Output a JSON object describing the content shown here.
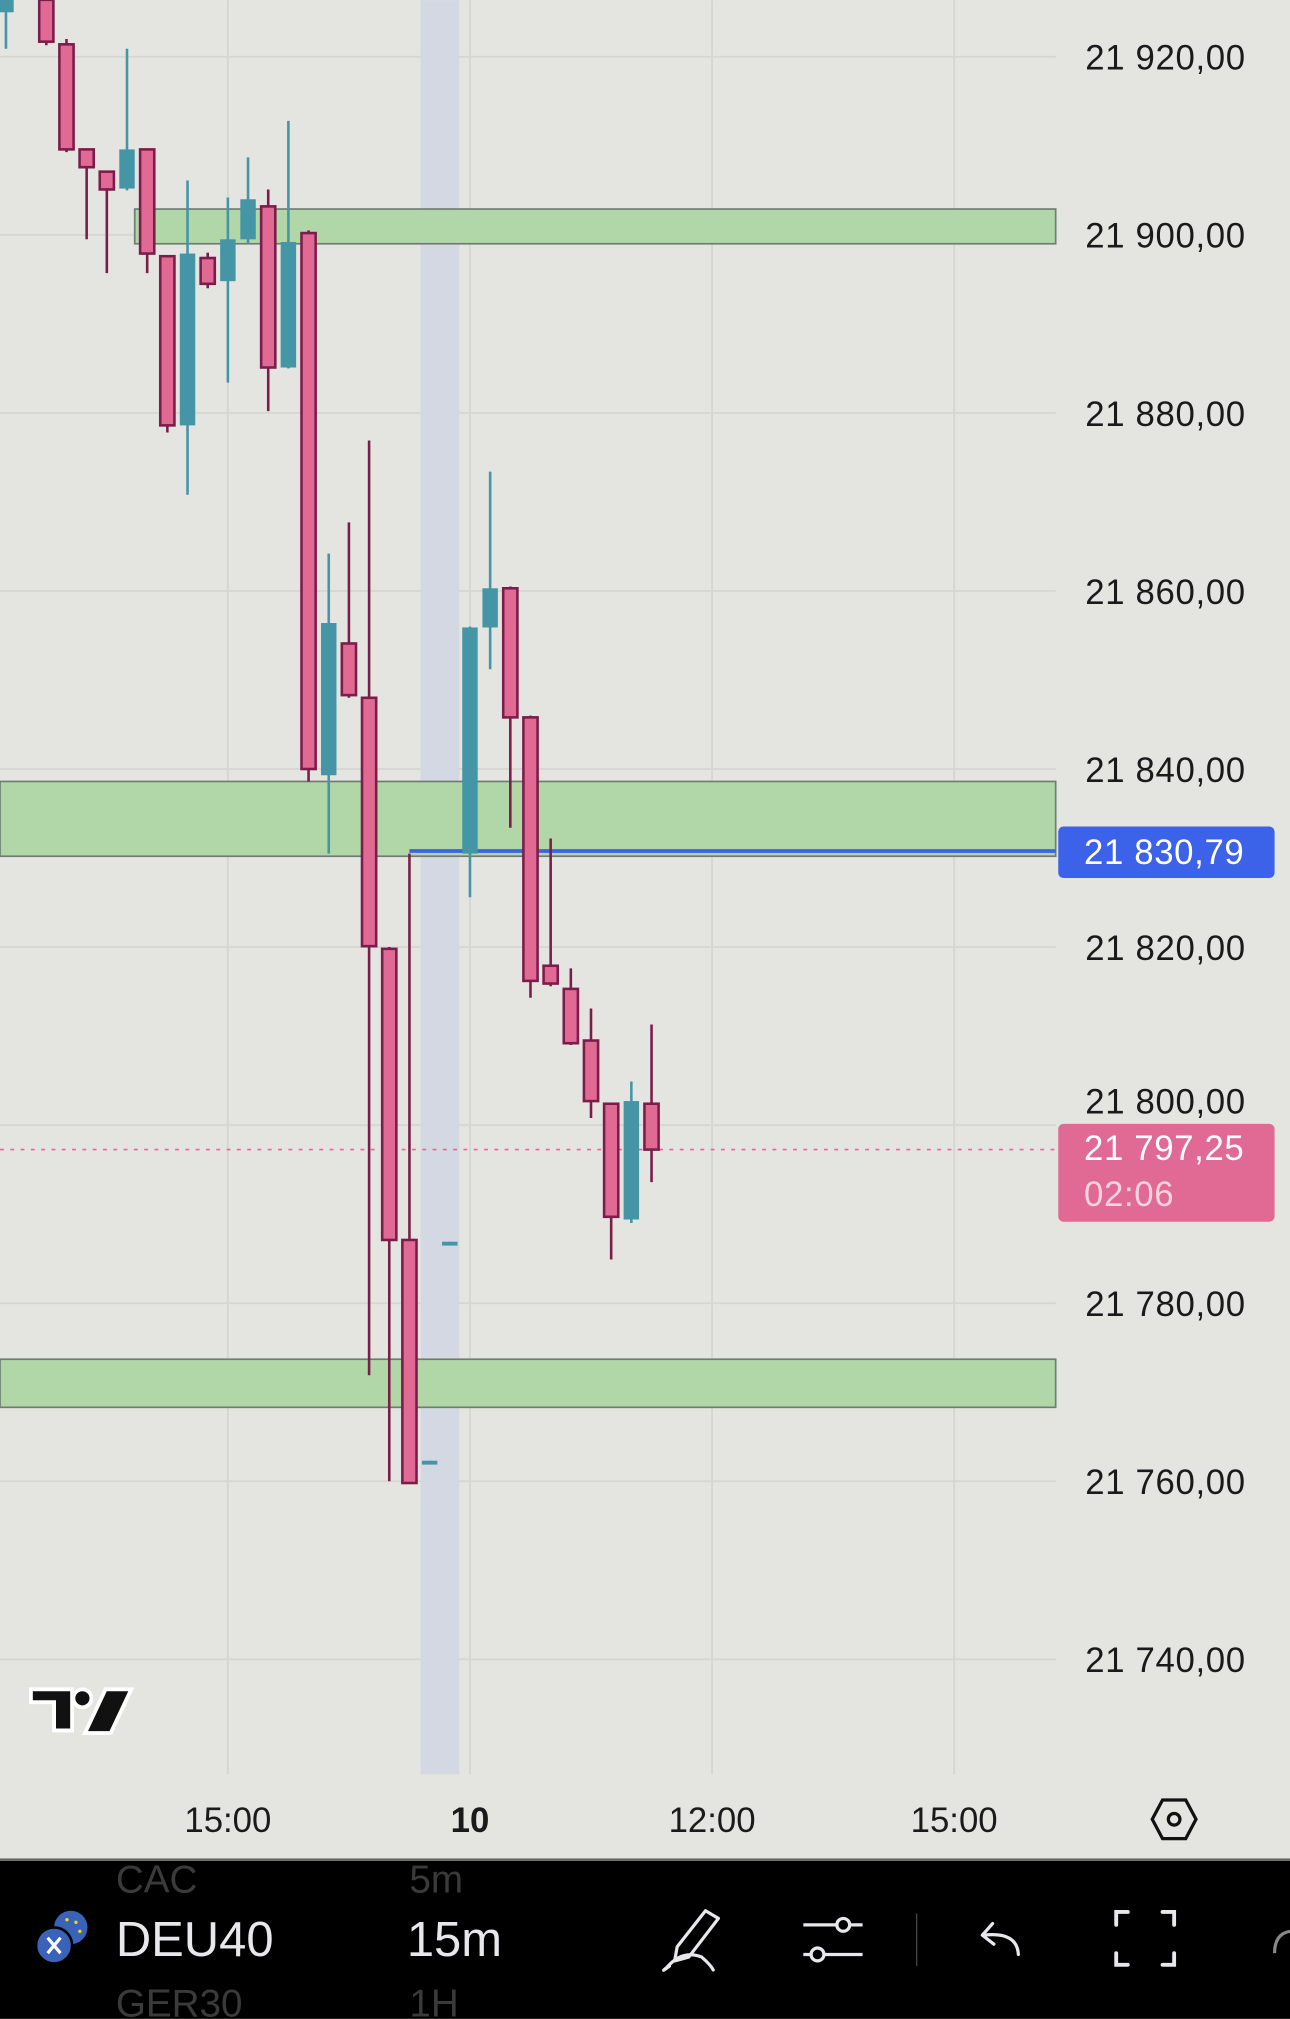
{
  "toolbar": {
    "symbol": "DEU40",
    "interval": "15m",
    "picker_prev_symbol": "CAC",
    "picker_prev_interval": "5m",
    "picker_next_symbol": "GER30",
    "picker_next_interval": "1H",
    "icons": [
      "symbol-flag-icon",
      "pencil-draw-icon",
      "sliders-icon",
      "undo-icon",
      "fullscreen-icon"
    ]
  },
  "colors": {
    "background": "#e4e4e0",
    "bearish": "#e06a93",
    "bearish_border": "#7b1d4a",
    "bullish": "#4495a6",
    "zone": "#b1d6a8",
    "alert_line": "#3b62e8",
    "last_price": "#e06a93"
  },
  "chart_data": {
    "type": "candlestick",
    "title": "",
    "xlabel": "",
    "ylabel": "",
    "ylim": [
      21725,
      21927
    ],
    "grid": true,
    "y_ticks": [
      "21 920,00",
      "21 900,00",
      "21 880,00",
      "21 860,00",
      "21 840,00",
      "21 820,00",
      "21 800,00",
      "21 780,00",
      "21 760,00",
      "21 740,00"
    ],
    "y_tick_values": [
      21920,
      21900,
      21880,
      21860,
      21840,
      21820,
      21800,
      21780,
      21760,
      21740
    ],
    "x_ticks": [
      {
        "label": "15:00",
        "t": "9 15:00",
        "bold": false
      },
      {
        "label": "10",
        "t": "10 09:00",
        "bold": true
      },
      {
        "label": "12:00",
        "t": "10 12:00",
        "bold": false
      },
      {
        "label": "15:00",
        "t": "10 15:00",
        "bold": false
      }
    ],
    "candles": [
      {
        "t": "9 12:15",
        "o": 21925.0,
        "h": 21930.0,
        "l": 21920.9,
        "c": 21928.0
      },
      {
        "t": "9 12:45",
        "o": 21926.4,
        "h": 21927.0,
        "l": 21921.3,
        "c": 21921.7
      },
      {
        "t": "9 13:00",
        "o": 21921.4,
        "h": 21922.0,
        "l": 21909.3,
        "c": 21909.6
      },
      {
        "t": "9 13:15",
        "o": 21909.6,
        "h": 21909.6,
        "l": 21899.5,
        "c": 21907.6
      },
      {
        "t": "9 13:30",
        "o": 21907.1,
        "h": 21907.1,
        "l": 21895.7,
        "c": 21905.1
      },
      {
        "t": "9 13:45",
        "o": 21905.2,
        "h": 21920.9,
        "l": 21905.0,
        "c": 21909.6
      },
      {
        "t": "9 14:00",
        "o": 21909.6,
        "h": 21909.6,
        "l": 21895.7,
        "c": 21897.9
      },
      {
        "t": "9 14:15",
        "o": 21897.6,
        "h": 21897.6,
        "l": 21877.8,
        "c": 21878.6
      },
      {
        "t": "9 14:30",
        "o": 21878.6,
        "h": 21906.1,
        "l": 21870.8,
        "c": 21897.9
      },
      {
        "t": "9 14:45",
        "o": 21897.4,
        "h": 21898.0,
        "l": 21894.0,
        "c": 21894.5
      },
      {
        "t": "9 15:00",
        "o": 21894.8,
        "h": 21904.2,
        "l": 21883.4,
        "c": 21899.5
      },
      {
        "t": "9 15:15",
        "o": 21899.5,
        "h": 21908.7,
        "l": 21899.0,
        "c": 21904.0
      },
      {
        "t": "9 15:30",
        "o": 21903.2,
        "h": 21905.1,
        "l": 21880.2,
        "c": 21885.1
      },
      {
        "t": "9 15:45",
        "o": 21885.1,
        "h": 21912.8,
        "l": 21885.0,
        "c": 21899.2
      },
      {
        "t": "9 16:00",
        "o": 21900.2,
        "h": 21900.5,
        "l": 21838.6,
        "c": 21840.0
      },
      {
        "t": "9 16:15",
        "o": 21839.3,
        "h": 21864.2,
        "l": 21830.5,
        "c": 21856.4
      },
      {
        "t": "9 16:30",
        "o": 21854.1,
        "h": 21867.7,
        "l": 21848.0,
        "c": 21848.3
      },
      {
        "t": "9 16:45",
        "o": 21848.0,
        "h": 21876.9,
        "l": 21771.9,
        "c": 21820.1
      },
      {
        "t": "9 17:00",
        "o": 21819.8,
        "h": 21820.0,
        "l": 21760.0,
        "c": 21787.1
      },
      {
        "t": "9 17:15",
        "o": 21787.1,
        "h": 21830.5,
        "l": 21759.8,
        "c": 21759.8
      },
      {
        "t": "9 17:30",
        "o": 21762.0,
        "h": 21762.3,
        "l": 21762.0,
        "c": 21762.3
      },
      {
        "t": "9 17:45",
        "o": 21786.7,
        "h": 21786.9,
        "l": 21786.7,
        "c": 21786.9
      },
      {
        "t": "10 09:00",
        "o": 21830.5,
        "h": 21856.0,
        "l": 21825.6,
        "c": 21855.9
      },
      {
        "t": "10 09:15",
        "o": 21855.9,
        "h": 21873.4,
        "l": 21851.2,
        "c": 21860.3
      },
      {
        "t": "10 09:30",
        "o": 21860.3,
        "h": 21860.5,
        "l": 21833.4,
        "c": 21845.8
      },
      {
        "t": "10 09:45",
        "o": 21845.8,
        "h": 21846.0,
        "l": 21814.3,
        "c": 21816.2
      },
      {
        "t": "10 10:00",
        "o": 21817.9,
        "h": 21832.2,
        "l": 21815.6,
        "c": 21815.9
      },
      {
        "t": "10 10:15",
        "o": 21815.3,
        "h": 21817.6,
        "l": 21809.0,
        "c": 21809.2
      },
      {
        "t": "10 10:30",
        "o": 21809.5,
        "h": 21813.1,
        "l": 21800.8,
        "c": 21802.7
      },
      {
        "t": "10 10:45",
        "o": 21802.4,
        "h": 21802.5,
        "l": 21784.9,
        "c": 21789.7
      },
      {
        "t": "10 11:00",
        "o": 21789.4,
        "h": 21804.9,
        "l": 21789.0,
        "c": 21802.7
      },
      {
        "t": "10 11:15",
        "o": 21802.4,
        "h": 21811.3,
        "l": 21793.6,
        "c": 21797.25
      }
    ],
    "zones": [
      {
        "from": 21899.0,
        "to": 21902.9,
        "start": "9 13:45"
      },
      {
        "from": 21830.2,
        "to": 21838.6,
        "start": null
      },
      {
        "from": 21768.3,
        "to": 21773.7,
        "start": null
      }
    ],
    "alert_line": {
      "price": 21830.79,
      "label": "21 830,79",
      "start": "9 17:15"
    },
    "last_price": {
      "price": 21797.25,
      "label": "21 797,25",
      "countdown": "02:06"
    },
    "session_break": "9 17:30"
  }
}
